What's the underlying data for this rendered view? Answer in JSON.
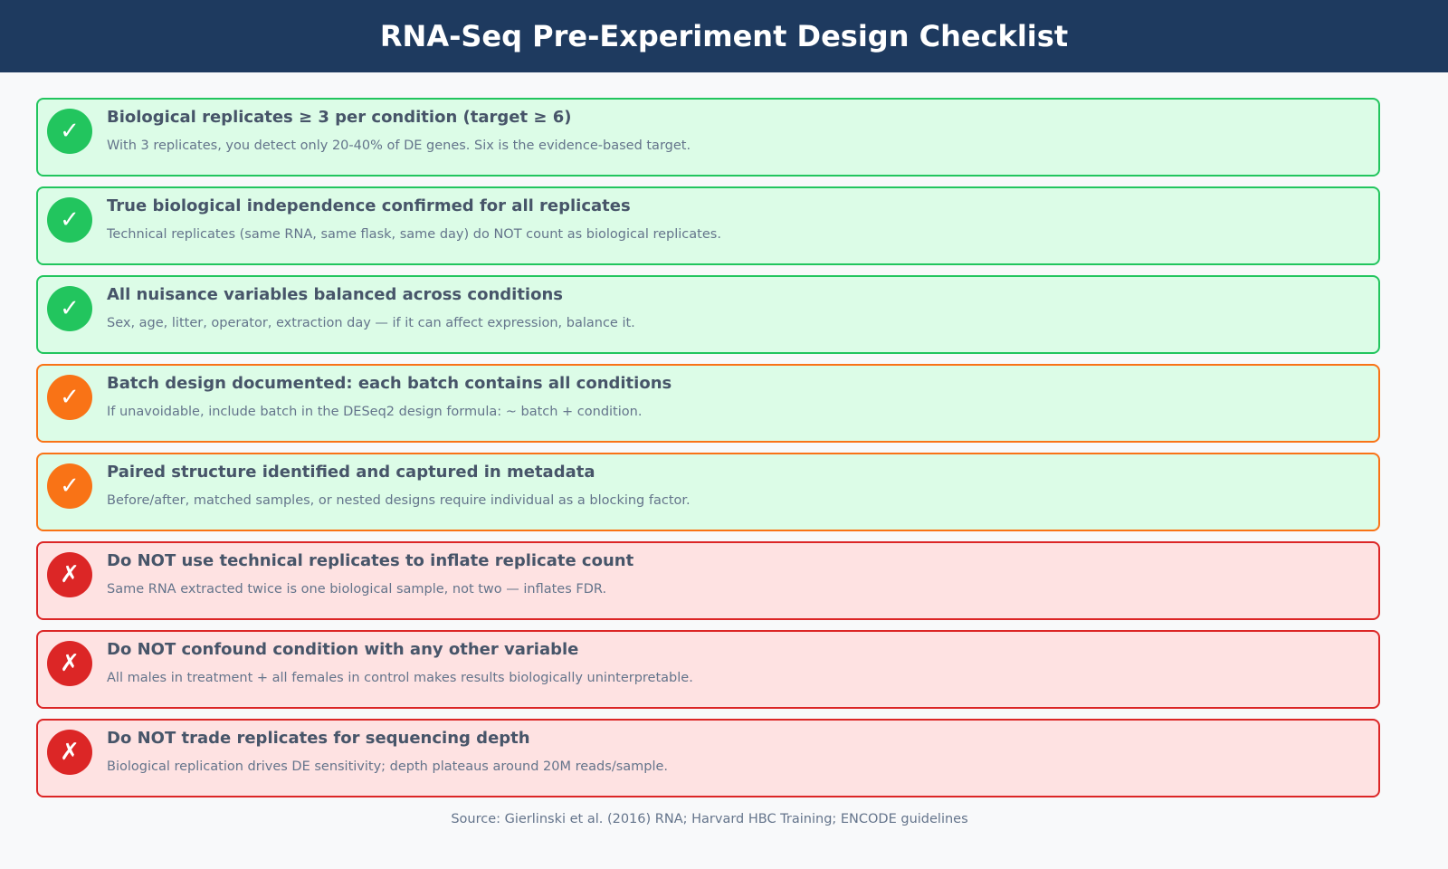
{
  "header": {
    "title": "RNA-Seq Pre-Experiment Design Checklist"
  },
  "items": [
    {
      "icon": "✓",
      "title": "Biological replicates ≥ 3 per condition (target ≥ 6)",
      "description": "With 3 replicates, you detect only 20-40% of DE genes. Six is the evidence-based target.",
      "color": "#22c55e",
      "background": "#dcfce7"
    },
    {
      "icon": "✓",
      "title": "True biological independence confirmed for all replicates",
      "description": "Technical replicates (same RNA, same flask, same day) do NOT count as biological replicates.",
      "color": "#22c55e",
      "background": "#dcfce7"
    },
    {
      "icon": "✓",
      "title": "All nuisance variables balanced across conditions",
      "description": "Sex, age, litter, operator, extraction day — if it can affect expression, balance it.",
      "color": "#22c55e",
      "background": "#dcfce7"
    },
    {
      "icon": "✓",
      "title": "Batch design documented: each batch contains all conditions",
      "description": "If unavoidable, include batch in the DESeq2 design formula: ~ batch + condition.",
      "color": "#f97316",
      "background": "#dcfce7"
    },
    {
      "icon": "✓",
      "title": "Paired structure identified and captured in metadata",
      "description": "Before/after, matched samples, or nested designs require individual as a blocking factor.",
      "color": "#f97316",
      "background": "#dcfce7"
    },
    {
      "icon": "✗",
      "title": "Do NOT use technical replicates to inflate replicate count",
      "description": "Same RNA extracted twice is one biological sample, not two — inflates FDR.",
      "color": "#dc2626",
      "background": "#fee2e2"
    },
    {
      "icon": "✗",
      "title": "Do NOT confound condition with any other variable",
      "description": "All males in treatment + all females in control makes results biologically uninterpretable.",
      "color": "#dc2626",
      "background": "#fee2e2"
    },
    {
      "icon": "✗",
      "title": "Do NOT trade replicates for sequencing depth",
      "description": "Biological replication drives DE sensitivity; depth plateaus around 20M reads/sample.",
      "color": "#dc2626",
      "background": "#fee2e2"
    }
  ],
  "source": "Source: Gierlinski et al. (2016) RNA; Harvard HBC Training; ENCODE guidelines"
}
